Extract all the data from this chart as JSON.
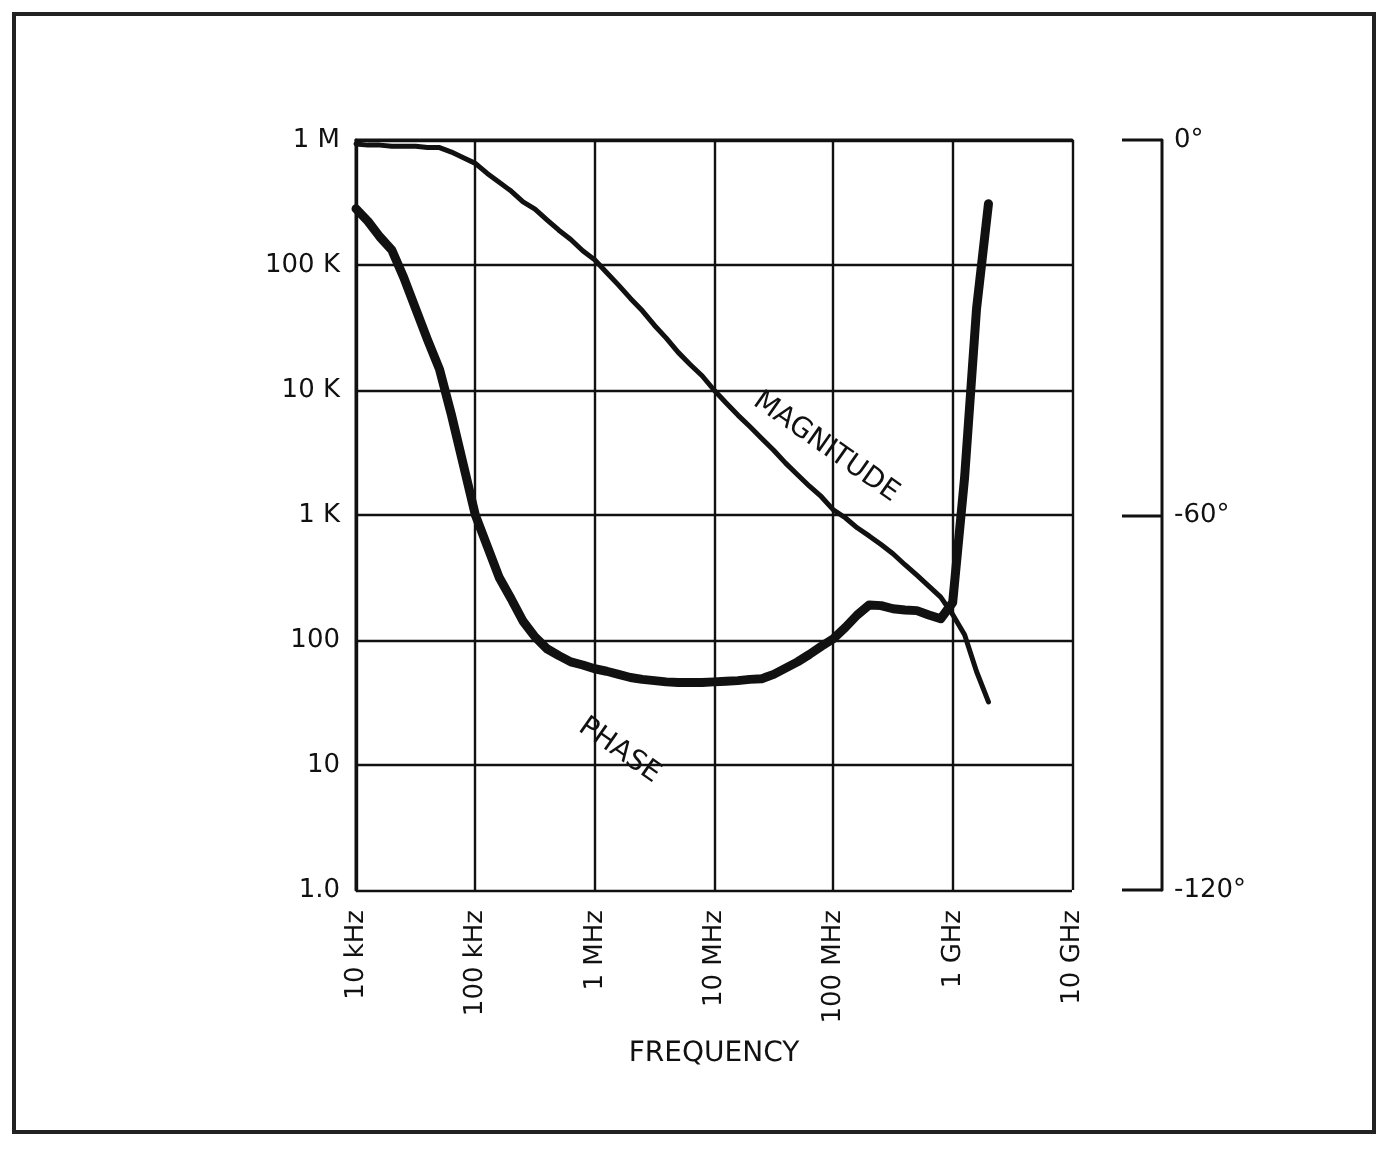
{
  "chart_data": {
    "type": "line",
    "xlabel": "FREQUENCY",
    "log": "y",
    "categories": [
      "10 kHz",
      null,
      null,
      null,
      null,
      null,
      null,
      null,
      null,
      null,
      "100 kHz",
      null,
      null,
      null,
      null,
      null,
      null,
      null,
      null,
      null,
      "1 MHz",
      null,
      null,
      null,
      null,
      null,
      null,
      null,
      null,
      null,
      "10 MHz",
      null,
      null,
      null,
      null,
      null,
      null,
      null,
      null,
      null,
      "100 MHz",
      null,
      null,
      null,
      null,
      null,
      null,
      null,
      null,
      null,
      "1 GHz",
      null,
      null,
      null,
      null,
      null,
      null,
      null,
      null,
      null,
      "10 GHz"
    ],
    "ylim": [
      1,
      1000000
    ],
    "yticks": [
      {
        "value": 1,
        "label": "1.0"
      },
      10,
      100,
      {
        "value": 1000,
        "label": "1 K"
      },
      {
        "value": 10000,
        "label": "10 K"
      },
      {
        "value": 100000,
        "label": "100 K"
      },
      {
        "value": 1000000,
        "label": "1 M"
      }
    ],
    "y2lim": [
      -120,
      0
    ],
    "y2ticks": [
      {
        "value": -120,
        "label": "-120°"
      },
      {
        "value": -60,
        "label": "-60°"
      },
      {
        "value": 0,
        "label": "0°"
      }
    ],
    "grid": true,
    "marker": "none",
    "line_style": "solid",
    "series": [
      {
        "name": "MAGNITUDE",
        "color": "#111111",
        "values": [
          930000,
          910000,
          910000,
          890000,
          890000,
          890000,
          870000,
          870000,
          800000,
          720000,
          650000,
          540000,
          460000,
          390000,
          320000,
          280000,
          230000,
          190000,
          160000,
          130000,
          110000,
          87000,
          69000,
          54000,
          43000,
          33000,
          26000,
          20000,
          16000,
          13000,
          10000,
          7900,
          6300,
          5100,
          4100,
          3300,
          2600,
          2100,
          1700,
          1400,
          1100,
          950,
          790,
          680,
          580,
          490,
          400,
          330,
          270,
          220,
          160,
          110,
          56,
          32,
          null,
          null,
          null,
          null,
          null,
          null,
          null
        ]
      },
      {
        "name": "PHASE",
        "color": "#111111",
        "axis": "y2",
        "values": [
          -11,
          -13,
          -15.5,
          -17.6,
          -22,
          -27,
          -32,
          -36.7,
          -44,
          -52,
          -60,
          -65,
          -70,
          -73.4,
          -77,
          -79.5,
          -81.4,
          -82.5,
          -83.5,
          -84,
          -84.6,
          -85,
          -85.5,
          -86,
          -86.3,
          -86.5,
          -86.7,
          -86.8,
          -86.8,
          -86.8,
          -86.7,
          -86.6,
          -86.5,
          -86.3,
          -86.2,
          -85.5,
          -84.5,
          -83.5,
          -82.3,
          -81,
          -79.8,
          -78,
          -76,
          -74.4,
          -74.5,
          -75,
          -75.2,
          -75.3,
          -76,
          -76.6,
          -74,
          -54,
          -27,
          -10.2,
          null,
          null,
          null,
          null,
          null,
          null,
          null
        ]
      }
    ]
  }
}
